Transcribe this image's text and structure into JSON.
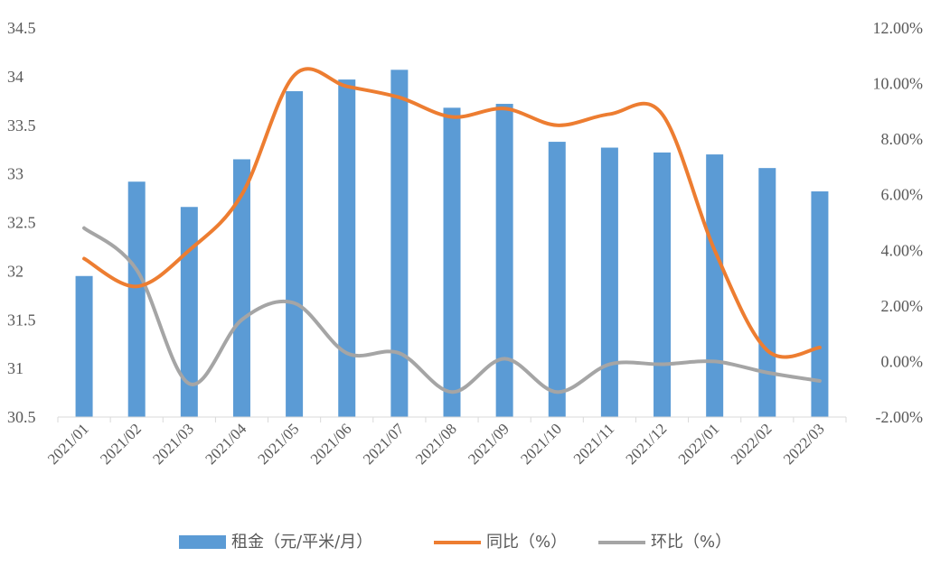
{
  "chart_data": {
    "type": "bar",
    "categories": [
      "2021/01",
      "2021/02",
      "2021/03",
      "2021/04",
      "2021/05",
      "2021/06",
      "2021/07",
      "2021/08",
      "2021/09",
      "2021/10",
      "2021/11",
      "2021/12",
      "2022/01",
      "2022/02",
      "2022/03"
    ],
    "series": [
      {
        "name": "租金（元/平米/月）",
        "type": "bar",
        "axis": "left",
        "values": [
          31.95,
          32.92,
          32.66,
          33.15,
          33.85,
          33.97,
          34.07,
          33.68,
          33.72,
          33.33,
          33.27,
          33.22,
          33.2,
          33.06,
          32.82
        ]
      },
      {
        "name": "同比（%）",
        "type": "line",
        "axis": "right",
        "values": [
          3.7,
          2.7,
          4.0,
          6.0,
          10.3,
          9.9,
          9.5,
          8.8,
          9.1,
          8.5,
          8.9,
          8.9,
          4.0,
          0.4,
          0.5
        ]
      },
      {
        "name": "环比（%）",
        "type": "line",
        "axis": "right",
        "values": [
          4.8,
          3.3,
          -0.8,
          1.5,
          2.1,
          0.3,
          0.3,
          -1.1,
          0.1,
          -1.1,
          -0.1,
          -0.1,
          0.0,
          -0.4,
          -0.7
        ]
      }
    ],
    "y_left": {
      "min": 30.5,
      "max": 34.5,
      "ticks": [
        "30.5",
        "31",
        "31.5",
        "32",
        "32.5",
        "33",
        "33.5",
        "34",
        "34.5"
      ]
    },
    "y_right": {
      "min": -2,
      "max": 12,
      "ticks": [
        "-2.00%",
        "0.00%",
        "2.00%",
        "4.00%",
        "6.00%",
        "8.00%",
        "10.00%",
        "12.00%"
      ]
    },
    "legend_position": "bottom",
    "grid": false,
    "colors": {
      "bar": "#5b9bd5",
      "yoy": "#ed7d31",
      "mom": "#a5a5a5",
      "axis": "#d9d9d9"
    }
  }
}
